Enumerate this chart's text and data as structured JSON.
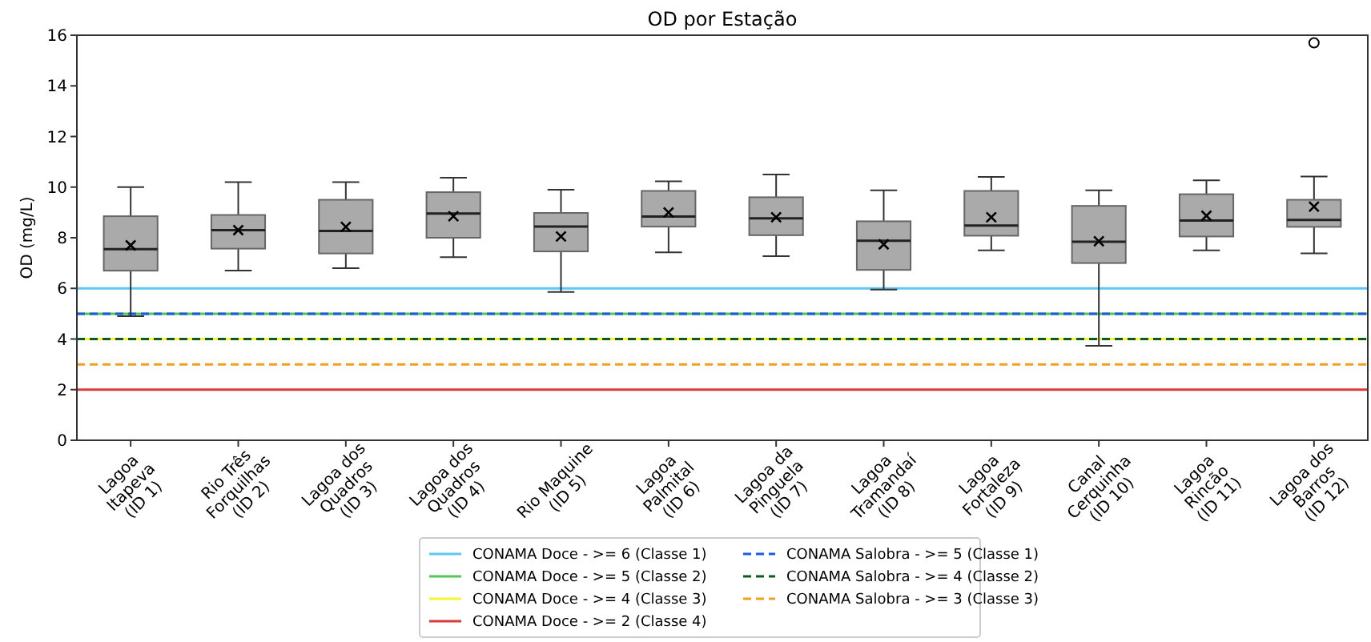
{
  "chart_data": {
    "type": "box",
    "title": "OD por Estação",
    "ylabel": "OD (mg/L)",
    "categories": [
      "Lagoa\nItapeva\n(ID 1)",
      "Rio Três\nForquilhas\n(ID 2)",
      "Lagoa dos\nQuadros\n(ID 3)",
      "Lagoa dos\nQuadros\n(ID 4)",
      "Rio Maquine\n(ID 5)",
      "Lagoa\nPalmital\n(ID 6)",
      "Lagoa da\nPinguela\n(ID 7)",
      "Lagoa\nTramandaí\n(ID 8)",
      "Lagoa\nFortaleza\n(ID 9)",
      "Canal\nCerquinha\n(ID 10)",
      "Lagoa\nRincão\n(ID 11)",
      "Lagoa dos\nBarros\n(ID 12)"
    ],
    "boxes": [
      {
        "low": 4.9,
        "q1": 6.7,
        "median": 7.55,
        "q3": 8.85,
        "high": 10.0,
        "mean": 7.7
      },
      {
        "low": 6.7,
        "q1": 7.57,
        "median": 8.3,
        "q3": 8.9,
        "high": 10.2,
        "mean": 8.3
      },
      {
        "low": 6.8,
        "q1": 7.38,
        "median": 8.27,
        "q3": 9.5,
        "high": 10.2,
        "mean": 8.43
      },
      {
        "low": 7.23,
        "q1": 8.0,
        "median": 8.96,
        "q3": 9.8,
        "high": 10.37,
        "mean": 8.85
      },
      {
        "low": 5.86,
        "q1": 7.46,
        "median": 8.44,
        "q3": 8.98,
        "high": 9.9,
        "mean": 8.05
      },
      {
        "low": 7.42,
        "q1": 8.44,
        "median": 8.84,
        "q3": 9.85,
        "high": 10.23,
        "mean": 9.0
      },
      {
        "low": 7.27,
        "q1": 8.1,
        "median": 8.77,
        "q3": 9.6,
        "high": 10.5,
        "mean": 8.81
      },
      {
        "low": 5.95,
        "q1": 6.73,
        "median": 7.88,
        "q3": 8.65,
        "high": 9.87,
        "mean": 7.74
      },
      {
        "low": 7.5,
        "q1": 8.08,
        "median": 8.48,
        "q3": 9.85,
        "high": 10.4,
        "mean": 8.81
      },
      {
        "low": 3.73,
        "q1": 7.0,
        "median": 7.84,
        "q3": 9.26,
        "high": 9.87,
        "mean": 7.86
      },
      {
        "low": 7.5,
        "q1": 8.05,
        "median": 8.68,
        "q3": 9.72,
        "high": 10.27,
        "mean": 8.87
      },
      {
        "low": 7.38,
        "q1": 8.43,
        "median": 8.7,
        "q3": 9.5,
        "high": 10.42,
        "mean": 9.23,
        "outliers": [
          15.7
        ]
      }
    ],
    "color": "#aaaaaa",
    "ylim": [
      0,
      16
    ],
    "yticks": [
      0,
      2,
      4,
      6,
      8,
      10,
      12,
      14,
      16
    ],
    "ref_lines": [
      {
        "axis": "y",
        "value": 6,
        "label": "CONAMA Doce - >= 6 (Classe 1)",
        "color": "#5bc8f5",
        "line_style": "solid"
      },
      {
        "axis": "y",
        "value": 5,
        "label": "CONAMA Doce - >= 5 (Classe 2)",
        "color": "#55c455",
        "line_style": "solid"
      },
      {
        "axis": "y",
        "value": 4,
        "label": "CONAMA Doce - >= 4 (Classe 3)",
        "color": "#f5f531",
        "line_style": "solid"
      },
      {
        "axis": "y",
        "value": 2,
        "label": "CONAMA Doce - >= 2 (Classe 4)",
        "color": "#d93a3a",
        "line_style": "solid"
      },
      {
        "axis": "y",
        "value": 5,
        "label": "CONAMA Salobra - >= 5 (Classe 1)",
        "color": "#1a5ce0",
        "line_style": "dashed"
      },
      {
        "axis": "y",
        "value": 4,
        "label": "CONAMA Salobra - >= 4 (Classe 2)",
        "color": "#0b5a1f",
        "line_style": "dashed"
      },
      {
        "axis": "y",
        "value": 3,
        "label": "CONAMA Salobra - >= 3 (Classe 3)",
        "color": "#f0a020",
        "line_style": "dashed"
      }
    ],
    "legend": "bottom",
    "grid": false
  }
}
